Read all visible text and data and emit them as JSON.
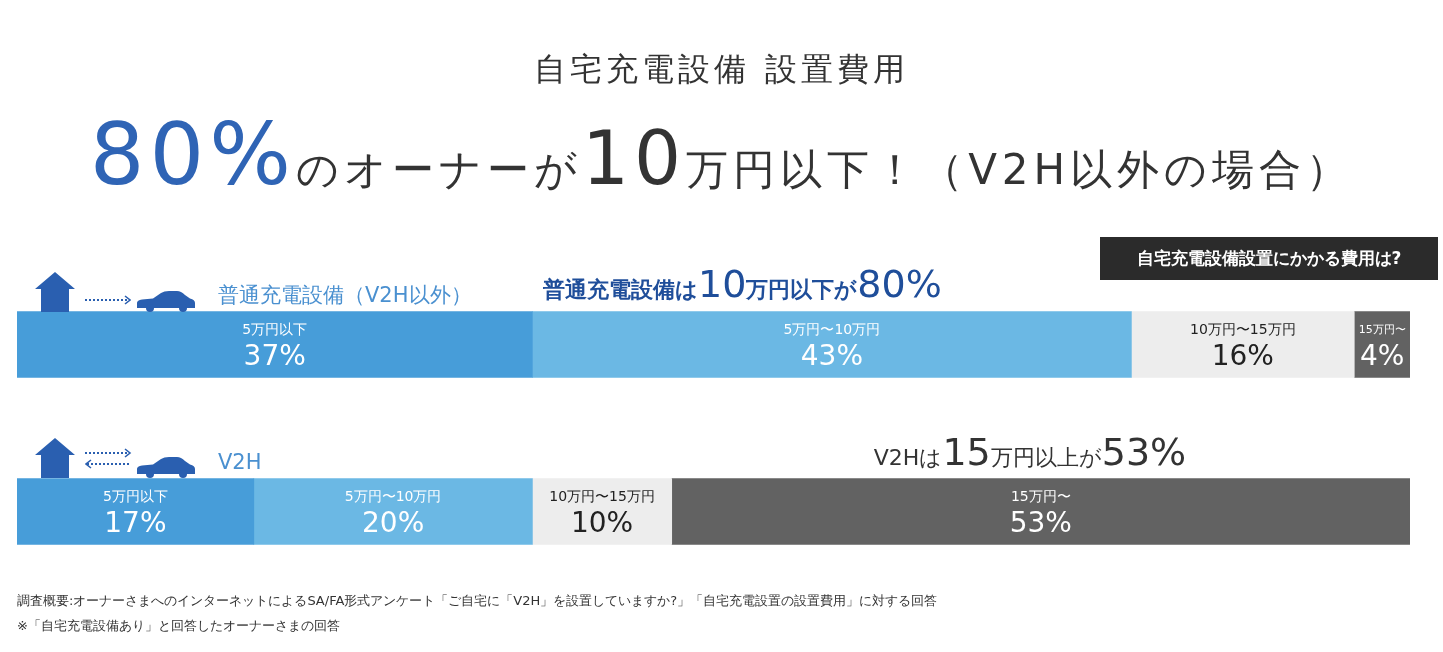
{
  "chart_data": {
    "type": "bar",
    "orientation": "horizontal",
    "stacked": true,
    "tick_labels": "y",
    "title": "自宅充電設備 設置費用",
    "subtitle": "80%のオーナーが10万円以下！（V2H以外の場合）",
    "categories": [
      "普通充電設備（V2H以外）",
      "V2H"
    ],
    "series": [
      {
        "name": "5万円以下",
        "color": "#479dd9",
        "values": [
          37,
          17
        ],
        "value_labels": [
          "37%",
          "17%"
        ]
      },
      {
        "name": "5万円〜10万円",
        "color": "#6bb8e4",
        "values": [
          43,
          20
        ],
        "value_labels": [
          "43%",
          "20%"
        ]
      },
      {
        "name": "10万円〜15万円",
        "color": "#ededed",
        "values": [
          16,
          10
        ],
        "value_labels": [
          "16%",
          "10%"
        ]
      },
      {
        "name": "15万円〜",
        "color": "#626262",
        "values": [
          4,
          53
        ],
        "value_labels": [
          "4%",
          "53%"
        ]
      }
    ],
    "annotations": [
      "自宅充電設備設置にかかる費用は?",
      "普通充電設備は10万円以下が80%",
      "V2Hは15万円以上が53%",
      "調査概要:オーナーさまへのインターネットによるSA/FA形式アンケート「ご自宅に「V2H」を設置していますか?」「自宅充電設置の設置費用」に対する回答",
      "※「自宅充電設備あり」と回答したオーナーさまの回答"
    ]
  }
}
